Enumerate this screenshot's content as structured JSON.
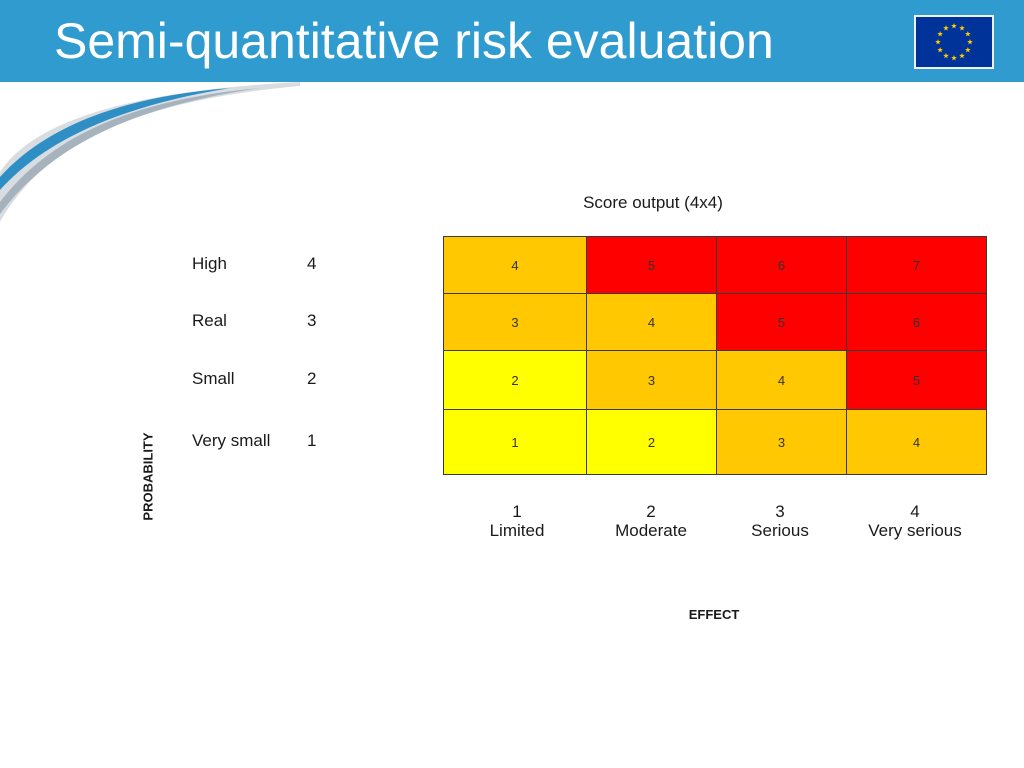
{
  "slide": {
    "title": "Semi-quantitative risk evaluation",
    "header_color": "#2f9bcf",
    "logo": "eu-flag"
  },
  "matrix": {
    "caption": "Score output (4x4)",
    "probability_axis_title": "PROBABILITY",
    "effect_axis_title": "EFFECT",
    "probability_levels": [
      {
        "label": "High",
        "score": "4"
      },
      {
        "label": "Real",
        "score": "3"
      },
      {
        "label": "Small",
        "score": "2"
      },
      {
        "label": "Very small",
        "score": "1"
      }
    ],
    "effect_levels": [
      {
        "score": "1",
        "label": "Limited"
      },
      {
        "score": "2",
        "label": "Moderate"
      },
      {
        "score": "3",
        "label": "Serious"
      },
      {
        "score": "4",
        "label": "Very serious"
      }
    ],
    "rows": [
      [
        "4",
        "5",
        "6",
        "7"
      ],
      [
        "3",
        "4",
        "5",
        "6"
      ],
      [
        "2",
        "3",
        "4",
        "5"
      ],
      [
        "1",
        "2",
        "3",
        "4"
      ]
    ],
    "colors": {
      "yellow": "#ffff00",
      "orange": "#ffc800",
      "red": "#ff0000"
    },
    "cell_colors": [
      [
        "orange",
        "red",
        "red",
        "red"
      ],
      [
        "orange",
        "orange",
        "red",
        "red"
      ],
      [
        "yellow",
        "orange",
        "orange",
        "red"
      ],
      [
        "yellow",
        "yellow",
        "orange",
        "orange"
      ]
    ]
  }
}
